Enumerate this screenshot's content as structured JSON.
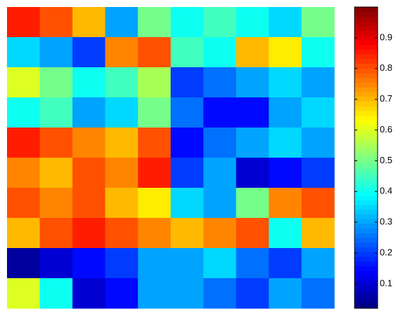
{
  "chart_data": {
    "type": "heatmap",
    "colormap": "jet",
    "values": [
      [
        0.85,
        0.8,
        0.7,
        0.3,
        0.5,
        0.4,
        0.45,
        0.4,
        0.35,
        0.5
      ],
      [
        0.35,
        0.3,
        0.2,
        0.75,
        0.8,
        0.45,
        0.4,
        0.7,
        0.65,
        0.4
      ],
      [
        0.6,
        0.5,
        0.4,
        0.45,
        0.55,
        0.2,
        0.25,
        0.3,
        0.35,
        0.3
      ],
      [
        0.4,
        0.45,
        0.3,
        0.35,
        0.5,
        0.25,
        0.15,
        0.15,
        0.3,
        0.35
      ],
      [
        0.85,
        0.8,
        0.75,
        0.7,
        0.8,
        0.15,
        0.25,
        0.3,
        0.35,
        0.3
      ],
      [
        0.75,
        0.7,
        0.8,
        0.75,
        0.85,
        0.2,
        0.3,
        0.1,
        0.15,
        0.2
      ],
      [
        0.8,
        0.75,
        0.8,
        0.7,
        0.65,
        0.35,
        0.3,
        0.5,
        0.75,
        0.8
      ],
      [
        0.7,
        0.8,
        0.85,
        0.8,
        0.75,
        0.7,
        0.75,
        0.8,
        0.4,
        0.7
      ],
      [
        0.05,
        0.1,
        0.15,
        0.2,
        0.3,
        0.3,
        0.35,
        0.25,
        0.2,
        0.3
      ],
      [
        0.6,
        0.4,
        0.1,
        0.15,
        0.3,
        0.3,
        0.25,
        0.2,
        0.3,
        0.25
      ]
    ],
    "clim": [
      0.02,
      1.0
    ],
    "colorbar_ticks": [
      0.1,
      0.2,
      0.3,
      0.4,
      0.5,
      0.6,
      0.7,
      0.8,
      0.9
    ]
  }
}
